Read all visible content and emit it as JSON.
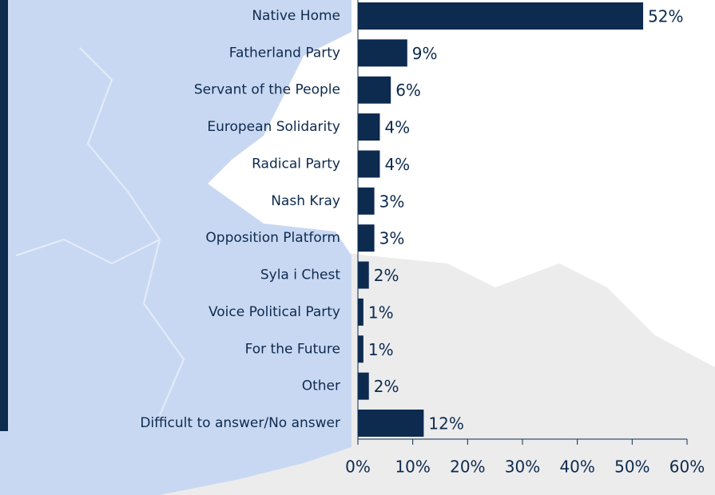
{
  "chart_data": {
    "type": "bar",
    "orientation": "horizontal",
    "categories": [
      "Native Home",
      "Fatherland Party",
      "Servant of the People",
      "European Solidarity",
      "Radical Party",
      "Nash Kray",
      "Opposition Platform",
      "Syla i Chest",
      "Voice Political Party",
      "For the Future",
      "Other",
      "Difficult to answer/No answer"
    ],
    "values": [
      52,
      9,
      6,
      4,
      4,
      3,
      3,
      2,
      1,
      1,
      2,
      12
    ],
    "value_labels": [
      "52%",
      "9%",
      "6%",
      "4%",
      "4%",
      "3%",
      "3%",
      "2%",
      "1%",
      "1%",
      "2%",
      "12%"
    ],
    "color": "#0d2a4f",
    "xlim": [
      0,
      60
    ],
    "xticks": [
      {
        "value": 0,
        "label": "0%"
      },
      {
        "value": 10,
        "label": "10%"
      },
      {
        "value": 20,
        "label": "20%"
      },
      {
        "value": 30,
        "label": "30%"
      },
      {
        "value": 40,
        "label": "40%"
      },
      {
        "value": 50,
        "label": "50%"
      },
      {
        "value": 60,
        "label": "60%"
      }
    ]
  }
}
